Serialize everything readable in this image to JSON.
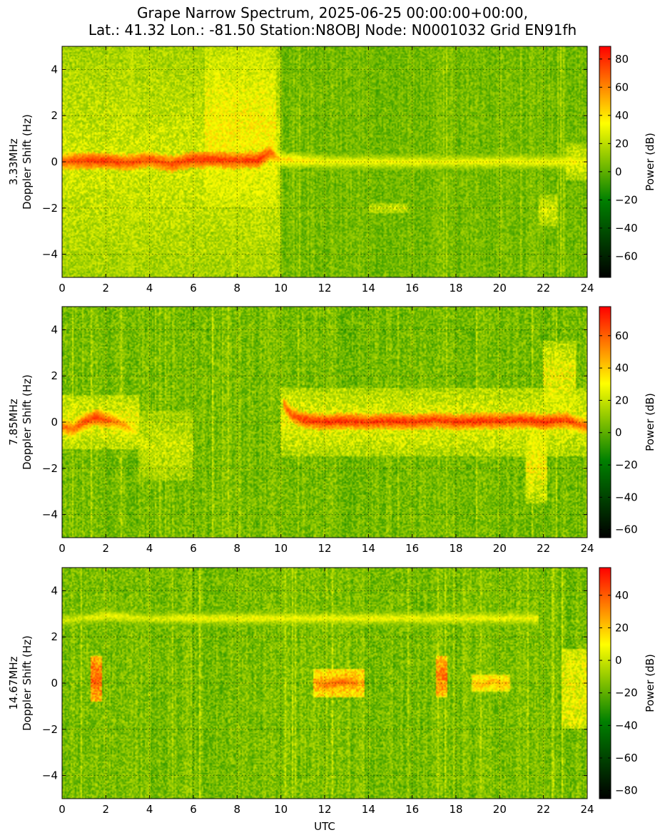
{
  "title": {
    "line1": "Grape Narrow Spectrum, 2025-06-25 00:00:00+00:00,",
    "line2": "Lat.: 41.32 Lon.: -81.50 Station:N8OBJ Node: N0001032 Grid EN91fh"
  },
  "chart_data": [
    {
      "type": "heatmap",
      "band": "3.33MHz",
      "ylabel_band": "3.33MHz",
      "ylabel": "Doppler Shift (Hz)",
      "xlabel": "",
      "xlim": [
        0,
        24
      ],
      "ylim": [
        -5,
        5
      ],
      "xticks": [
        0,
        2,
        4,
        6,
        8,
        10,
        12,
        14,
        16,
        18,
        20,
        22,
        24
      ],
      "yticks": [
        -4,
        -2,
        0,
        2,
        4
      ],
      "grid": true,
      "colorbar": {
        "label": "Power (dB)",
        "range": [
          -75,
          89
        ],
        "ticks": [
          -60,
          -40,
          -20,
          0,
          20,
          40,
          60,
          80
        ]
      },
      "colormap": [
        "#000000",
        "#008000",
        "#ffff00",
        "#ff0000"
      ],
      "background_level_db": 5,
      "traces": [
        {
          "name": "carrier",
          "x": [
            0,
            1,
            2,
            3,
            4,
            5,
            6,
            7,
            8,
            9,
            9.5,
            10,
            12,
            16,
            20,
            24
          ],
          "y": [
            0,
            0.05,
            0.05,
            -0.05,
            0.1,
            -0.1,
            0.1,
            0.1,
            0.05,
            0.1,
            0.4,
            0.1,
            0,
            0,
            0,
            0
          ],
          "power_db": [
            70,
            80,
            80,
            75,
            75,
            75,
            80,
            80,
            78,
            80,
            72,
            45,
            35,
            35,
            35,
            35
          ]
        }
      ],
      "spread_regions": [
        {
          "x_start": 0,
          "x_end": 10,
          "y_min": -5,
          "y_max": 5,
          "power_db": 25
        },
        {
          "x_start": 6.5,
          "x_end": 9.8,
          "y_min": -2,
          "y_max": 5,
          "power_db": 35
        },
        {
          "x_start": 23,
          "x_end": 24,
          "y_min": -0.8,
          "y_max": 0.8,
          "power_db": 28
        },
        {
          "x_start": 21.8,
          "x_end": 22.6,
          "y_min": -2.8,
          "y_max": -1.4,
          "power_db": 25
        },
        {
          "x_start": 14,
          "x_end": 15.8,
          "y_min": -2.2,
          "y_max": -1.8,
          "power_db": 25
        }
      ]
    },
    {
      "type": "heatmap",
      "band": "7.85MHz",
      "ylabel_band": "7.85MHz",
      "ylabel": "Doppler Shift (Hz)",
      "xlabel": "",
      "xlim": [
        0,
        24
      ],
      "ylim": [
        -5,
        5
      ],
      "xticks": [
        0,
        2,
        4,
        6,
        8,
        10,
        12,
        14,
        16,
        18,
        20,
        22,
        24
      ],
      "yticks": [
        -4,
        -2,
        0,
        2,
        4
      ],
      "grid": true,
      "colorbar": {
        "label": "Power (dB)",
        "range": [
          -65,
          78
        ],
        "ticks": [
          -60,
          -40,
          -20,
          0,
          20,
          40,
          60
        ]
      },
      "colormap": [
        "#000000",
        "#008000",
        "#ffff00",
        "#ff0000"
      ],
      "background_level_db": 5,
      "traces": [
        {
          "name": "carrier",
          "x": [
            0,
            0.5,
            1,
            1.5,
            2,
            2.5,
            3,
            3.3
          ],
          "y": [
            -0.2,
            -0.3,
            0,
            0.2,
            0.1,
            0,
            -0.2,
            -0.4
          ],
          "power_db": [
            60,
            60,
            65,
            70,
            65,
            55,
            50,
            35
          ]
        },
        {
          "name": "carrier",
          "x": [
            10.1,
            10.5,
            11,
            12,
            13,
            14,
            15,
            16,
            17,
            18,
            19,
            20,
            21,
            22,
            23,
            24
          ],
          "y": [
            0.8,
            0.3,
            0.1,
            0,
            0.05,
            0,
            0.05,
            0,
            0.1,
            0,
            0.05,
            0.05,
            0.1,
            0,
            0.1,
            -0.2
          ],
          "power_db": [
            60,
            65,
            70,
            72,
            72,
            70,
            72,
            70,
            70,
            70,
            72,
            70,
            70,
            72,
            68,
            60
          ]
        }
      ],
      "spread_regions": [
        {
          "x_start": 0,
          "x_end": 3.5,
          "y_min": -1.2,
          "y_max": 1.2,
          "power_db": 28
        },
        {
          "x_start": 3.5,
          "x_end": 6,
          "y_min": -2.5,
          "y_max": 0.5,
          "power_db": 20
        },
        {
          "x_start": 10,
          "x_end": 24,
          "y_min": -1.5,
          "y_max": 1.5,
          "power_db": 26
        },
        {
          "x_start": 21.2,
          "x_end": 22.2,
          "y_min": -3.5,
          "y_max": -0.3,
          "power_db": 30
        },
        {
          "x_start": 22,
          "x_end": 23.5,
          "y_min": 0.5,
          "y_max": 3.5,
          "power_db": 28
        }
      ]
    },
    {
      "type": "heatmap",
      "band": "14.67MHz",
      "ylabel_band": "14.67MHz",
      "ylabel": "Doppler Shift (Hz)",
      "xlabel": "UTC",
      "xlim": [
        0,
        24
      ],
      "ylim": [
        -5,
        5
      ],
      "xticks": [
        0,
        2,
        4,
        6,
        8,
        10,
        12,
        14,
        16,
        18,
        20,
        22,
        24
      ],
      "yticks": [
        -4,
        -2,
        0,
        2,
        4
      ],
      "grid": true,
      "colorbar": {
        "label": "Power (dB)",
        "range": [
          -85,
          57
        ],
        "ticks": [
          -80,
          -60,
          -40,
          -20,
          0,
          20,
          40
        ]
      },
      "colormap": [
        "#000000",
        "#008000",
        "#ffff00",
        "#ff0000"
      ],
      "background_level_db": -15,
      "traces": [
        {
          "name": "tone",
          "x": [
            0,
            1,
            2,
            4,
            6,
            8,
            10,
            12,
            14,
            16,
            18,
            20,
            21.8
          ],
          "y": [
            2.7,
            2.8,
            2.9,
            2.8,
            2.8,
            2.8,
            2.8,
            2.8,
            2.8,
            2.8,
            2.8,
            2.8,
            2.8
          ],
          "power_db": [
            5,
            5,
            10,
            5,
            10,
            10,
            10,
            10,
            10,
            10,
            10,
            10,
            10
          ]
        },
        {
          "name": "carrier",
          "x": [
            11.6,
            12,
            12.5,
            13,
            13.5
          ],
          "y": [
            0,
            -0.1,
            0,
            0.05,
            -0.05
          ],
          "power_db": [
            30,
            35,
            40,
            40,
            30
          ]
        },
        {
          "name": "carrier",
          "x": [
            18.8,
            19.2,
            19.6,
            20,
            20.4
          ],
          "y": [
            0,
            -0.1,
            0.1,
            0,
            -0.1
          ],
          "power_db": [
            20,
            25,
            25,
            25,
            20
          ]
        }
      ],
      "spread_regions": [
        {
          "x_start": 1.3,
          "x_end": 1.8,
          "y_min": -0.8,
          "y_max": 1.2,
          "power_db": 40
        },
        {
          "x_start": 11.5,
          "x_end": 13.8,
          "y_min": -0.6,
          "y_max": 0.6,
          "power_db": 25
        },
        {
          "x_start": 17.1,
          "x_end": 17.6,
          "y_min": -0.6,
          "y_max": 1.2,
          "power_db": 35
        },
        {
          "x_start": 18.7,
          "x_end": 20.5,
          "y_min": -0.4,
          "y_max": 0.4,
          "power_db": 15
        },
        {
          "x_start": 22.8,
          "x_end": 24,
          "y_min": -2,
          "y_max": 1.5,
          "power_db": 5
        }
      ]
    }
  ]
}
